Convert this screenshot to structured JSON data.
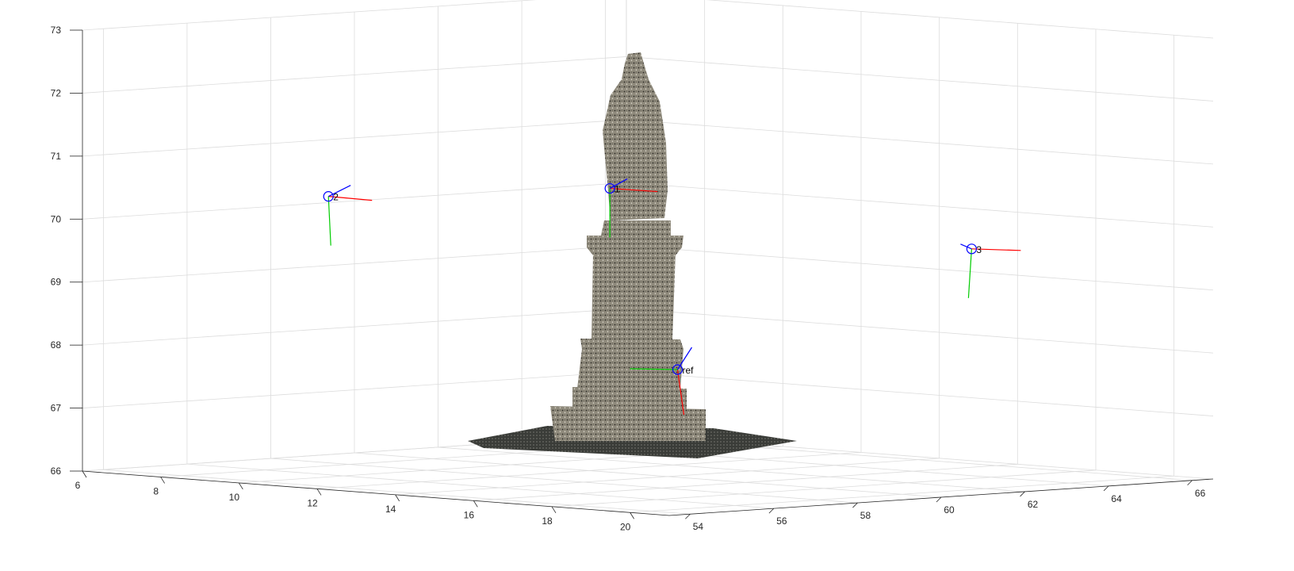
{
  "chart_data": {
    "type": "scatter",
    "title": "",
    "xlabel": "",
    "ylabel": "",
    "zlabel": "",
    "projection": "3d",
    "grid": true,
    "xlim": [
      6,
      21
    ],
    "ylim": [
      53.5,
      66.5
    ],
    "zlim": [
      66,
      73
    ],
    "x_ticks": [
      "6",
      "8",
      "10",
      "12",
      "14",
      "16",
      "18",
      "20"
    ],
    "y_ticks": [
      "54",
      "56",
      "58",
      "60",
      "62",
      "64",
      "66"
    ],
    "z_ticks": [
      "66",
      "67",
      "68",
      "69",
      "70",
      "71",
      "72",
      "73"
    ],
    "point_cloud": {
      "description_visible": false,
      "colormap": "rgb"
    },
    "cameras": [
      {
        "label": "2",
        "x": 9.4,
        "y": 56.2,
        "z": 70.4,
        "color": "#0000ff"
      },
      {
        "label": "1",
        "x": 13.6,
        "y": 59.0,
        "z": 70.6,
        "color": "#0000ff"
      },
      {
        "label": "3",
        "x": 17.5,
        "y": 64.0,
        "z": 69.6,
        "color": "#0000ff"
      },
      {
        "label": "ref",
        "x": 16.4,
        "y": 58.0,
        "z": 67.9,
        "color": "#0000ff"
      }
    ],
    "axis_colors": {
      "x": "#ff0000",
      "y": "#00cc00",
      "z": "#0000ff"
    }
  }
}
